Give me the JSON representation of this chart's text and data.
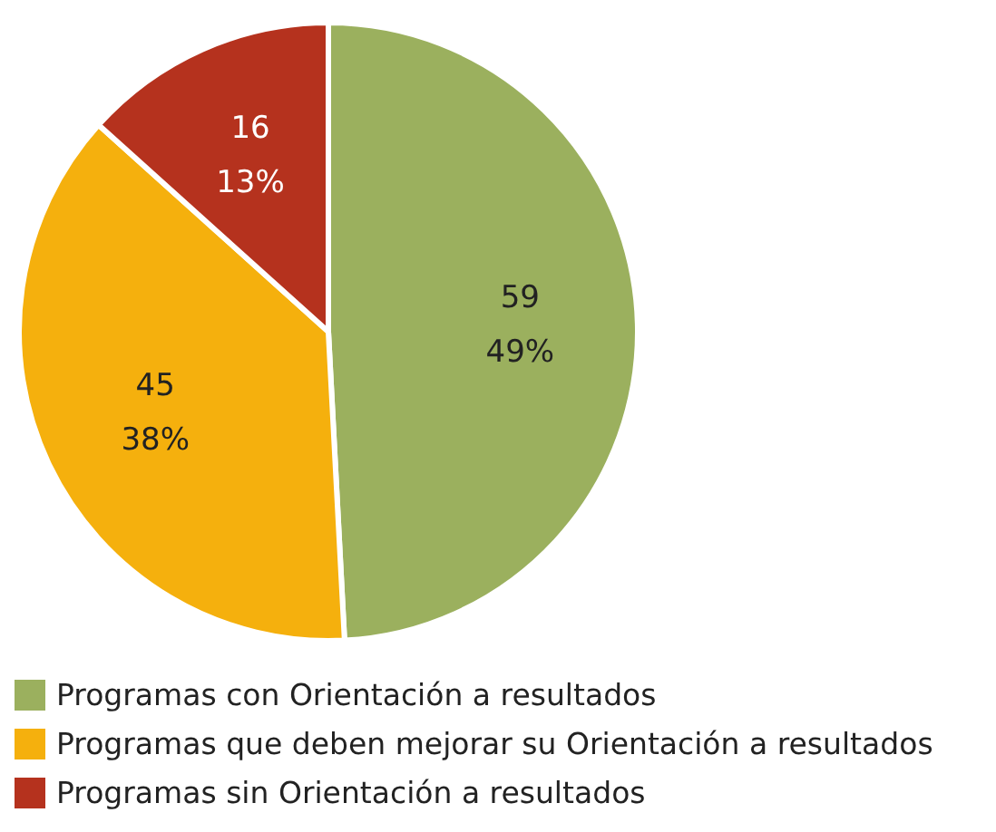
{
  "chart_data": {
    "type": "pie",
    "categories": [
      "Programas con Orientación a resultados",
      "Programas que deben mejorar su Orientación a resultados",
      "Programas sin Orientación a resultados"
    ],
    "values": [
      59,
      45,
      16
    ],
    "colors": [
      "#9bb05e",
      "#f5b00d",
      "#b5321e"
    ],
    "value_labels": [
      "59\n49%",
      "45\n38%",
      "16\n13%"
    ],
    "legend": "bottom"
  }
}
